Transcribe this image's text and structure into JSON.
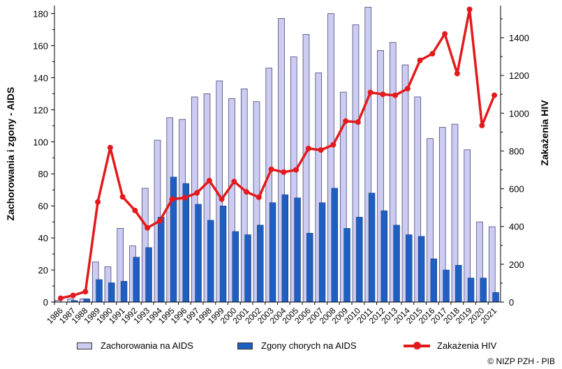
{
  "chart_data": {
    "type": "bar+line",
    "categories": [
      "1986",
      "1987",
      "1988",
      "1989",
      "1990",
      "1991",
      "1992",
      "1993",
      "1994",
      "1995",
      "1996",
      "1997",
      "1998",
      "1999",
      "2000",
      "2001",
      "2002",
      "2003",
      "2004",
      "2005",
      "2006",
      "2007",
      "2008",
      "2009",
      "2010",
      "2011",
      "2012",
      "2013",
      "2014",
      "2015",
      "2016",
      "2017",
      "2018",
      "2019",
      "2020",
      "2021"
    ],
    "series": [
      {
        "name": "Zachorowania na AIDS",
        "axis": "left",
        "kind": "bar",
        "color": "#ccccf2",
        "values": [
          1,
          2,
          2,
          25,
          22,
          46,
          35,
          71,
          101,
          115,
          114,
          128,
          130,
          138,
          127,
          133,
          125,
          146,
          177,
          153,
          167,
          143,
          180,
          131,
          173,
          184,
          157,
          162,
          148,
          128,
          102,
          109,
          111,
          95,
          50,
          47
        ]
      },
      {
        "name": "Zgony chorych na AIDS",
        "axis": "left",
        "kind": "bar",
        "color": "#1f5fc2",
        "values": [
          0,
          1,
          2,
          14,
          12,
          13,
          28,
          34,
          53,
          78,
          74,
          61,
          51,
          60,
          44,
          42,
          48,
          62,
          67,
          65,
          43,
          62,
          71,
          46,
          53,
          68,
          57,
          48,
          42,
          41,
          27,
          20,
          23,
          15,
          15,
          6
        ]
      },
      {
        "name": "Zakażenia HIV",
        "axis": "right",
        "kind": "line",
        "color": "#e31a1c",
        "values": [
          20,
          35,
          55,
          530,
          818,
          557,
          485,
          393,
          430,
          545,
          552,
          578,
          643,
          545,
          638,
          583,
          555,
          703,
          688,
          700,
          813,
          805,
          833,
          958,
          953,
          1110,
          1100,
          1095,
          1130,
          1280,
          1315,
          1420,
          1210,
          1550,
          935,
          1095
        ]
      }
    ],
    "left_axis": {
      "title": "Zachorowania i zgony - AIDS",
      "range": [
        0,
        185
      ],
      "ticks": [
        0,
        20,
        40,
        60,
        80,
        100,
        120,
        140,
        160,
        180
      ]
    },
    "right_axis": {
      "title": "Zakażenia HIV",
      "range": [
        0,
        1570
      ],
      "ticks": [
        0,
        200,
        400,
        600,
        800,
        1000,
        1200,
        1400
      ]
    },
    "legend_position": "bottom",
    "credit": "© NIZP PZH - PIB"
  }
}
